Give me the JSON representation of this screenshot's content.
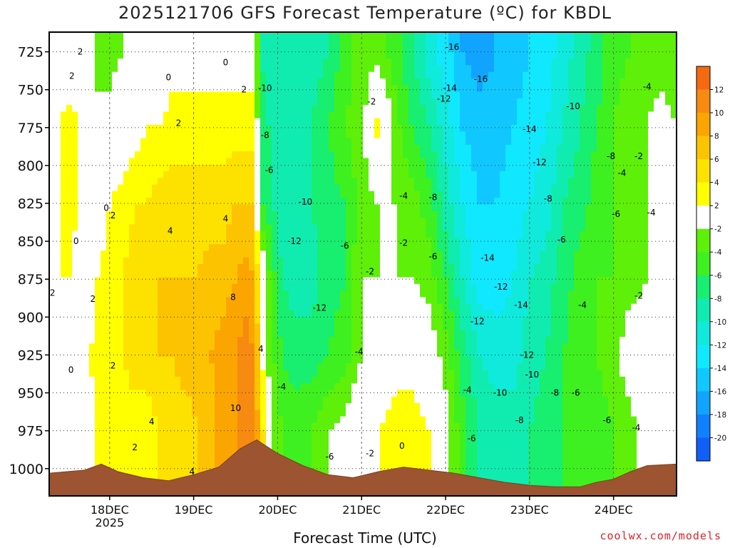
{
  "chart_data": {
    "type": "heatmap",
    "title": "2025121706 GFS Forecast Temperature (ºC) for KBDL",
    "xlabel": "Forecast Time (UTC)",
    "ylabel": "",
    "x_ticks": [
      {
        "label": "18DEC",
        "sub": "2025",
        "pos": 0.0
      },
      {
        "label": "19DEC",
        "sub": "",
        "pos": 1.0
      },
      {
        "label": "20DEC",
        "sub": "",
        "pos": 2.0
      },
      {
        "label": "21DEC",
        "sub": "",
        "pos": 3.0
      },
      {
        "label": "22DEC",
        "sub": "",
        "pos": 4.0
      },
      {
        "label": "23DEC",
        "sub": "",
        "pos": 5.0
      },
      {
        "label": "24DEC",
        "sub": "",
        "pos": 6.0
      }
    ],
    "xlim": [
      -0.72,
      6.75
    ],
    "y_ticks": [
      725,
      750,
      775,
      800,
      825,
      850,
      875,
      900,
      925,
      950,
      975,
      1000
    ],
    "ylim": [
      712,
      1018
    ],
    "y_scale": "linear-pressure-inverted",
    "grid": true,
    "colorbar": {
      "position": "right",
      "labels": [
        "12",
        "10",
        "8",
        "6",
        "4",
        "2",
        "-2",
        "-4",
        "-6",
        "-8",
        "-10",
        "-12",
        "-14",
        "-16",
        "-18",
        "-20"
      ],
      "colors": [
        "#f36a10",
        "#f78a10",
        "#fba500",
        "#fcc400",
        "#fde200",
        "#ffff00",
        "#ffffff",
        "#5ef008",
        "#3ef020",
        "#18ee70",
        "#10ecb0",
        "#10eadc",
        "#10e8ff",
        "#10c8ff",
        "#10a4ff",
        "#1080ff",
        "#1060f8"
      ]
    },
    "columns": [
      {
        "x": -0.72,
        "t": [
          0,
          2,
          1,
          1,
          0,
          -2
        ]
      },
      {
        "x": -0.6,
        "t": [
          1,
          2,
          2,
          2,
          1,
          -2
        ]
      },
      {
        "x": -0.45,
        "t": [
          0,
          3,
          3,
          2,
          1,
          0
        ]
      },
      {
        "x": -0.3,
        "t": [
          -1,
          1,
          0,
          0,
          1,
          1
        ]
      },
      {
        "x": -0.15,
        "t": [
          -2,
          -2,
          0,
          2,
          3,
          2
        ]
      },
      {
        "x": 0.0,
        "t": [
          -3,
          -1,
          2,
          3,
          3,
          3
        ]
      },
      {
        "x": 0.15,
        "t": [
          -2,
          0,
          3,
          4,
          4,
          3
        ]
      },
      {
        "x": 0.3,
        "t": [
          -1,
          1,
          4,
          5,
          5,
          3
        ]
      },
      {
        "x": 0.45,
        "t": [
          0,
          2,
          4,
          5,
          5,
          3
        ]
      },
      {
        "x": 0.6,
        "t": [
          0,
          2,
          5,
          6,
          6,
          4
        ]
      },
      {
        "x": 0.75,
        "t": [
          1,
          3,
          5,
          6,
          6,
          5
        ]
      },
      {
        "x": 0.9,
        "t": [
          1,
          3,
          5,
          6,
          7,
          5
        ]
      },
      {
        "x": 1.05,
        "t": [
          1,
          3,
          5,
          6,
          7,
          6
        ]
      },
      {
        "x": 1.2,
        "t": [
          1,
          3,
          5,
          7,
          8,
          7
        ]
      },
      {
        "x": 1.35,
        "t": [
          1,
          3,
          5,
          7,
          9,
          9
        ]
      },
      {
        "x": 1.5,
        "t": [
          1,
          3,
          6,
          8,
          10,
          10
        ]
      },
      {
        "x": 1.62,
        "t": [
          1,
          3,
          6,
          9,
          11,
          12
        ]
      },
      {
        "x": 1.72,
        "t": [
          1,
          3,
          6,
          8,
          10,
          11
        ]
      },
      {
        "x": 1.8,
        "t": [
          -8,
          -7,
          -6,
          2,
          3,
          6
        ]
      },
      {
        "x": 1.9,
        "t": [
          -9,
          -8,
          -7,
          -4,
          -3,
          -1
        ]
      },
      {
        "x": 2.05,
        "t": [
          -10,
          -9,
          -10,
          -8,
          -6,
          -4
        ]
      },
      {
        "x": 2.2,
        "t": [
          -10,
          -9,
          -10,
          -9,
          -7,
          -5
        ]
      },
      {
        "x": 2.4,
        "t": [
          -9,
          -8,
          -8,
          -9,
          -7,
          -4
        ]
      },
      {
        "x": 2.6,
        "t": [
          -8,
          -6,
          -7,
          -7,
          -6,
          -2
        ]
      },
      {
        "x": 2.8,
        "t": [
          -5,
          -4,
          -6,
          -6,
          -5,
          -1
        ]
      },
      {
        "x": 3.0,
        "t": [
          -3,
          -3,
          -3,
          -2,
          -2,
          1
        ]
      },
      {
        "x": 3.2,
        "t": [
          -3,
          3,
          -2,
          -2,
          -1,
          2
        ]
      },
      {
        "x": 3.4,
        "t": [
          -5,
          -3,
          -2,
          -2,
          1,
          3
        ]
      },
      {
        "x": 3.6,
        "t": [
          -8,
          -6,
          -3,
          -2,
          1,
          3
        ]
      },
      {
        "x": 3.8,
        "t": [
          -11,
          -8,
          -5,
          -3,
          0,
          2
        ]
      },
      {
        "x": 4.0,
        "t": [
          -13,
          -11,
          -9,
          -6,
          -3,
          -1
        ]
      },
      {
        "x": 4.2,
        "t": [
          -16,
          -14,
          -12,
          -10,
          -7,
          -5
        ]
      },
      {
        "x": 4.4,
        "t": [
          -17,
          -15,
          -14,
          -13,
          -10,
          -8
        ]
      },
      {
        "x": 4.6,
        "t": [
          -16,
          -15,
          -14,
          -13,
          -11,
          -9
        ]
      },
      {
        "x": 4.8,
        "t": [
          -15,
          -14,
          -13,
          -12,
          -11,
          -9
        ]
      },
      {
        "x": 5.0,
        "t": [
          -14,
          -13,
          -12,
          -10,
          -9,
          -8
        ]
      },
      {
        "x": 5.2,
        "t": [
          -13,
          -12,
          -11,
          -9,
          -8,
          -7
        ]
      },
      {
        "x": 5.4,
        "t": [
          -11,
          -10,
          -8,
          -7,
          -6,
          -6
        ]
      },
      {
        "x": 5.6,
        "t": [
          -9,
          -8,
          -7,
          -5,
          -5,
          -5
        ]
      },
      {
        "x": 5.8,
        "t": [
          -7,
          -6,
          -5,
          -4,
          -4,
          -5
        ]
      },
      {
        "x": 6.0,
        "t": [
          -5,
          -4,
          -4,
          -4,
          -3,
          -4
        ]
      },
      {
        "x": 6.2,
        "t": [
          -4,
          -2,
          -3,
          -3,
          0,
          -3
        ]
      },
      {
        "x": 6.4,
        "t": [
          -3,
          -2,
          -2,
          -2,
          -1,
          0
        ]
      },
      {
        "x": 6.55,
        "t": [
          -3,
          -1,
          -2,
          -1,
          1,
          1
        ]
      },
      {
        "x": 6.75,
        "t": [
          -3,
          -2,
          -2,
          -2,
          0,
          2
        ]
      }
    ],
    "column_levels": [
      725,
      775,
      825,
      875,
      925,
      975
    ],
    "terrain": [
      {
        "x": -0.72,
        "p": 1003
      },
      {
        "x": -0.3,
        "p": 1001
      },
      {
        "x": -0.1,
        "p": 997
      },
      {
        "x": 0.1,
        "p": 1002
      },
      {
        "x": 0.4,
        "p": 1006
      },
      {
        "x": 0.7,
        "p": 1008
      },
      {
        "x": 1.0,
        "p": 1004
      },
      {
        "x": 1.3,
        "p": 999
      },
      {
        "x": 1.55,
        "p": 987
      },
      {
        "x": 1.75,
        "p": 981
      },
      {
        "x": 2.0,
        "p": 990
      },
      {
        "x": 2.3,
        "p": 998
      },
      {
        "x": 2.6,
        "p": 1004
      },
      {
        "x": 2.9,
        "p": 1006
      },
      {
        "x": 3.2,
        "p": 1002
      },
      {
        "x": 3.5,
        "p": 999
      },
      {
        "x": 3.8,
        "p": 1001
      },
      {
        "x": 4.1,
        "p": 1003
      },
      {
        "x": 4.4,
        "p": 1006
      },
      {
        "x": 4.7,
        "p": 1009
      },
      {
        "x": 5.0,
        "p": 1011
      },
      {
        "x": 5.3,
        "p": 1012
      },
      {
        "x": 5.6,
        "p": 1012
      },
      {
        "x": 5.8,
        "p": 1009
      },
      {
        "x": 6.0,
        "p": 1007
      },
      {
        "x": 6.2,
        "p": 1002
      },
      {
        "x": 6.4,
        "p": 998
      },
      {
        "x": 6.75,
        "p": 997
      }
    ],
    "contour_labels": [
      {
        "t": "2",
        "x": -0.35,
        "p": 725
      },
      {
        "t": "2",
        "x": -0.45,
        "p": 741
      },
      {
        "t": "0",
        "x": 0.7,
        "p": 742
      },
      {
        "t": "0",
        "x": 1.38,
        "p": 732
      },
      {
        "t": "2",
        "x": 0.82,
        "p": 772
      },
      {
        "t": "2",
        "x": 1.6,
        "p": 750
      },
      {
        "t": "0",
        "x": -0.04,
        "p": 828
      },
      {
        "t": "2",
        "x": 0.04,
        "p": 833
      },
      {
        "t": "0",
        "x": -0.4,
        "p": 850
      },
      {
        "t": "4",
        "x": 0.72,
        "p": 843
      },
      {
        "t": "4",
        "x": 1.38,
        "p": 835
      },
      {
        "t": "2",
        "x": -0.68,
        "p": 884
      },
      {
        "t": "2",
        "x": -0.2,
        "p": 888
      },
      {
        "t": "8",
        "x": 1.47,
        "p": 887
      },
      {
        "t": "2",
        "x": 0.04,
        "p": 932
      },
      {
        "t": "0",
        "x": -0.46,
        "p": 935
      },
      {
        "t": "4",
        "x": 0.5,
        "p": 969
      },
      {
        "t": "2",
        "x": 0.3,
        "p": 986
      },
      {
        "t": "10",
        "x": 1.5,
        "p": 960
      },
      {
        "t": "4",
        "x": 1.8,
        "p": 921
      },
      {
        "t": "4",
        "x": 0.98,
        "p": 1002
      },
      {
        "t": "-10",
        "x": 1.85,
        "p": 749
      },
      {
        "t": "-8",
        "x": 1.85,
        "p": 780
      },
      {
        "t": "-6",
        "x": 1.9,
        "p": 803
      },
      {
        "t": "-10",
        "x": 2.33,
        "p": 824
      },
      {
        "t": "-12",
        "x": 2.2,
        "p": 850
      },
      {
        "t": "-6",
        "x": 2.8,
        "p": 853
      },
      {
        "t": "-12",
        "x": 2.5,
        "p": 894
      },
      {
        "t": "-2",
        "x": 3.12,
        "p": 758
      },
      {
        "t": "-4",
        "x": 3.5,
        "p": 820
      },
      {
        "t": "-2",
        "x": 3.5,
        "p": 851
      },
      {
        "t": "-2",
        "x": 3.1,
        "p": 870
      },
      {
        "t": "-4",
        "x": 2.97,
        "p": 923
      },
      {
        "t": "-4",
        "x": 2.05,
        "p": 946
      },
      {
        "t": "-6",
        "x": 2.62,
        "p": 992
      },
      {
        "t": "-2",
        "x": 3.1,
        "p": 990
      },
      {
        "t": "0",
        "x": 3.48,
        "p": 985
      },
      {
        "t": "-8",
        "x": 3.85,
        "p": 821
      },
      {
        "t": "-6",
        "x": 3.85,
        "p": 860
      },
      {
        "t": "-16",
        "x": 4.08,
        "p": 722
      },
      {
        "t": "-16",
        "x": 4.42,
        "p": 743
      },
      {
        "t": "-14",
        "x": 4.05,
        "p": 749
      },
      {
        "t": "-12",
        "x": 3.98,
        "p": 756
      },
      {
        "t": "-14",
        "x": 4.5,
        "p": 861
      },
      {
        "t": "-12",
        "x": 4.66,
        "p": 880
      },
      {
        "t": "-14",
        "x": 4.9,
        "p": 892
      },
      {
        "t": "-12",
        "x": 4.38,
        "p": 903
      },
      {
        "t": "-14",
        "x": 5.0,
        "p": 776
      },
      {
        "t": "-12",
        "x": 5.12,
        "p": 798
      },
      {
        "t": "-10",
        "x": 5.52,
        "p": 761
      },
      {
        "t": "-8",
        "x": 5.22,
        "p": 822
      },
      {
        "t": "-6",
        "x": 5.38,
        "p": 849
      },
      {
        "t": "-12",
        "x": 4.97,
        "p": 925
      },
      {
        "t": "-10",
        "x": 5.03,
        "p": 938
      },
      {
        "t": "-10",
        "x": 4.65,
        "p": 950
      },
      {
        "t": "-8",
        "x": 5.3,
        "p": 950
      },
      {
        "t": "-6",
        "x": 5.55,
        "p": 950
      },
      {
        "t": "-8",
        "x": 4.88,
        "p": 968
      },
      {
        "t": "-4",
        "x": 4.26,
        "p": 948
      },
      {
        "t": "-6",
        "x": 4.31,
        "p": 980
      },
      {
        "t": "-4",
        "x": 6.4,
        "p": 748
      },
      {
        "t": "-2",
        "x": 6.3,
        "p": 794
      },
      {
        "t": "-8",
        "x": 5.97,
        "p": 794
      },
      {
        "t": "-4",
        "x": 6.1,
        "p": 805
      },
      {
        "t": "-6",
        "x": 6.03,
        "p": 832
      },
      {
        "t": "-4",
        "x": 6.45,
        "p": 831
      },
      {
        "t": "-2",
        "x": 6.3,
        "p": 886
      },
      {
        "t": "-4",
        "x": 5.63,
        "p": 892
      },
      {
        "t": "-6",
        "x": 5.92,
        "p": 968
      },
      {
        "t": "-4",
        "x": 6.27,
        "p": 973
      }
    ]
  },
  "credit": "coolwx.com/models"
}
